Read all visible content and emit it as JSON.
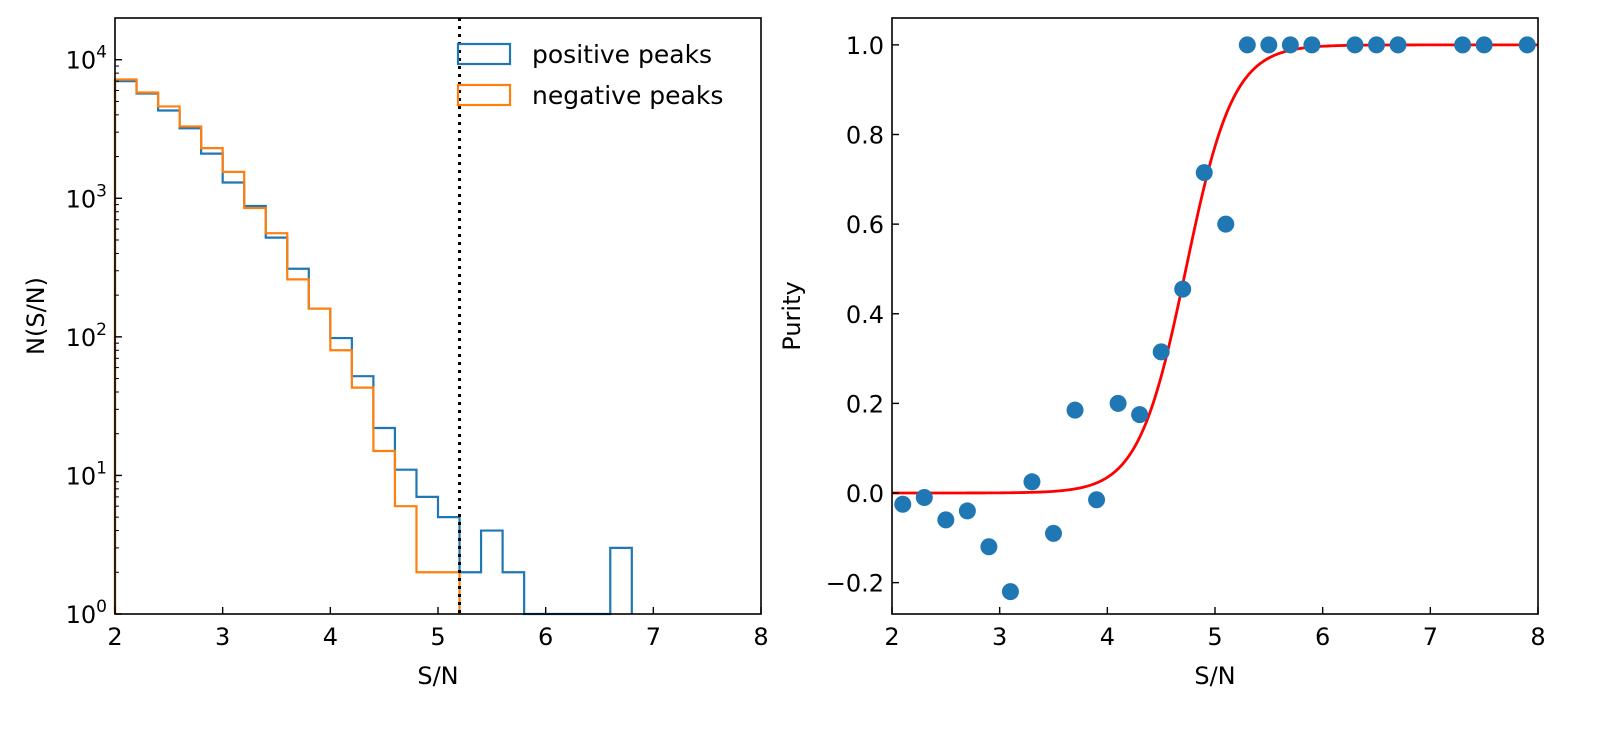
{
  "chart_data": [
    {
      "type": "histogram",
      "xlabel": "S/N",
      "ylabel": "N(S/N)",
      "xlim": [
        2,
        8
      ],
      "ylim": [
        1,
        20000
      ],
      "yscale": "log",
      "x_ticks": [
        "2",
        "3",
        "4",
        "5",
        "6",
        "7",
        "8"
      ],
      "y_ticks": [
        {
          "base": "10",
          "exp": "0",
          "value": 1
        },
        {
          "base": "10",
          "exp": "1",
          "value": 10
        },
        {
          "base": "10",
          "exp": "2",
          "value": 100
        },
        {
          "base": "10",
          "exp": "3",
          "value": 1000
        },
        {
          "base": "10",
          "exp": "4",
          "value": 10000
        }
      ],
      "bin_edges": [
        2.0,
        2.2,
        2.4,
        2.6,
        2.8,
        3.0,
        3.2,
        3.4,
        3.6,
        3.8,
        4.0,
        4.2,
        4.4,
        4.6,
        4.8,
        5.0,
        5.2,
        5.4,
        5.6,
        5.8,
        6.0,
        6.2,
        6.4,
        6.6,
        6.8
      ],
      "series": [
        {
          "name": "positive peaks",
          "color": "#1f77b4",
          "values": [
            7000,
            5700,
            4300,
            3200,
            2100,
            1300,
            880,
            520,
            310,
            160,
            98,
            52,
            22,
            11,
            7,
            5,
            2,
            4,
            2,
            0,
            0,
            0,
            0,
            3
          ]
        },
        {
          "name": "negative peaks",
          "color": "#ff7f0e",
          "values": [
            7200,
            5800,
            4600,
            3300,
            2300,
            1550,
            850,
            560,
            260,
            160,
            80,
            43,
            15,
            6,
            2,
            2
          ]
        }
      ],
      "legend_position": "top-right",
      "annotations": [
        {
          "type": "vline",
          "x": 5.2,
          "style": "dotted",
          "color": "#000000"
        }
      ]
    },
    {
      "type": "scatter",
      "xlabel": "S/N",
      "ylabel": "Purity",
      "xlim": [
        2,
        8
      ],
      "ylim": [
        -0.27,
        1.06
      ],
      "x_ticks": [
        "2",
        "3",
        "4",
        "5",
        "6",
        "7",
        "8"
      ],
      "y_ticks": [
        "−0.2",
        "0.0",
        "0.2",
        "0.4",
        "0.6",
        "0.8",
        "1.0"
      ],
      "y_tick_values": [
        -0.2,
        0.0,
        0.2,
        0.4,
        0.6,
        0.8,
        1.0
      ],
      "points": {
        "color": "#1f77b4",
        "x": [
          2.1,
          2.3,
          2.5,
          2.7,
          2.9,
          3.1,
          3.3,
          3.5,
          3.7,
          3.9,
          4.1,
          4.3,
          4.5,
          4.7,
          4.9,
          5.1,
          5.3,
          5.5,
          5.7,
          5.9,
          6.3,
          6.5,
          6.7,
          7.3,
          7.5,
          7.9
        ],
        "y": [
          -0.025,
          -0.01,
          -0.06,
          -0.04,
          -0.12,
          -0.22,
          0.025,
          -0.09,
          0.185,
          -0.015,
          0.2,
          0.175,
          0.315,
          0.455,
          0.715,
          0.6,
          1.0,
          1.0,
          1.0,
          1.0,
          1.0,
          1.0,
          1.0,
          1.0,
          1.0,
          1.0
        ]
      },
      "fit_curve": {
        "type": "logistic",
        "color": "#ff0000",
        "midpoint": 4.73,
        "scale": 0.22,
        "ymin": 0.0,
        "ymax": 1.0
      }
    }
  ]
}
